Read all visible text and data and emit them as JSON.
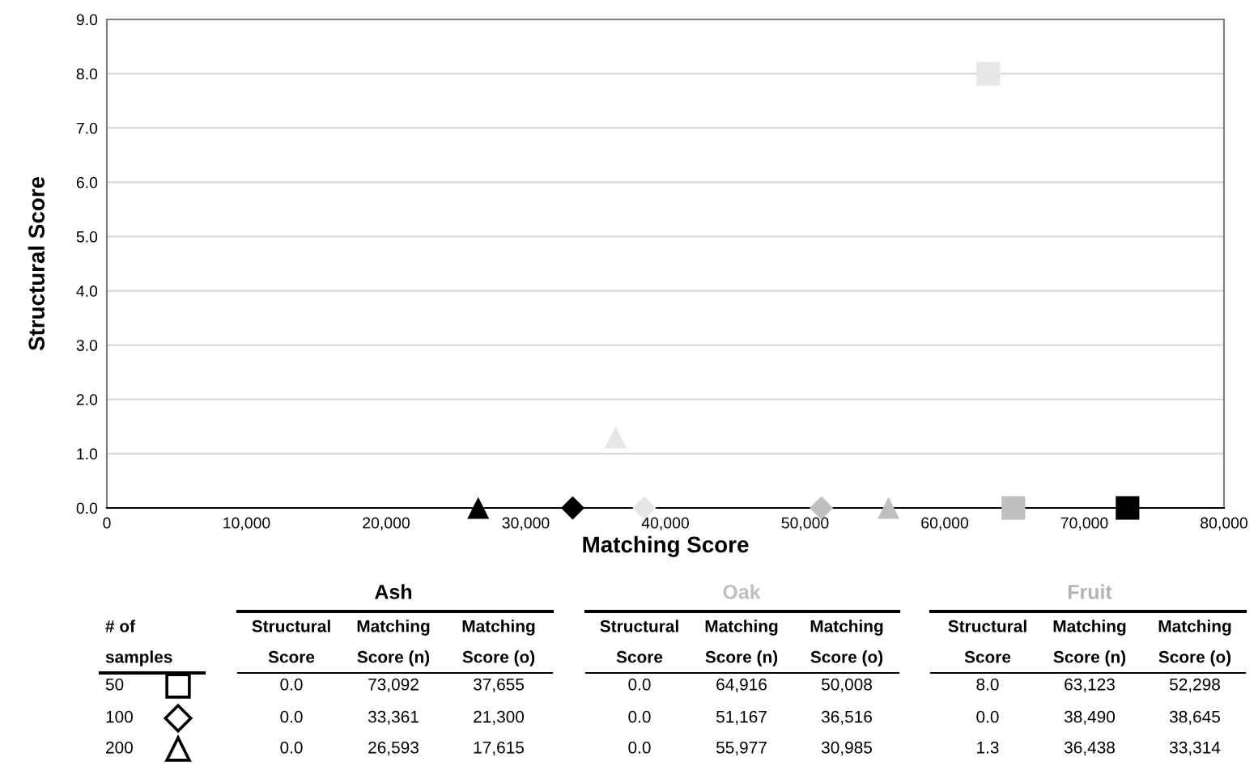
{
  "chart_data": {
    "type": "scatter",
    "xlabel": "Matching Score",
    "ylabel": "Structural Score",
    "xlim": [
      0,
      80000
    ],
    "xticks": [
      0,
      {
        "value": 10000,
        "label": "10,000"
      },
      {
        "value": 20000,
        "label": "20,000"
      },
      {
        "value": 30000,
        "label": "30,000"
      },
      {
        "value": 40000,
        "label": "40,000"
      },
      {
        "value": 50000,
        "label": "50,000"
      },
      {
        "value": 60000,
        "label": "60,000"
      },
      {
        "value": 70000,
        "label": "70,000"
      },
      {
        "value": 80000,
        "label": "80,000"
      }
    ],
    "ylim": [
      0,
      9
    ],
    "yticks": [
      {
        "value": 0,
        "label": "0.0"
      },
      {
        "value": 1,
        "label": "1.0"
      },
      {
        "value": 2,
        "label": "2.0"
      },
      {
        "value": 3,
        "label": "3.0"
      },
      {
        "value": 4,
        "label": "4.0"
      },
      {
        "value": 5,
        "label": "5.0"
      },
      {
        "value": 6,
        "label": "6.0"
      },
      {
        "value": 7,
        "label": "7.0"
      },
      {
        "value": 8,
        "label": "8.0"
      },
      {
        "value": 9,
        "label": "9.0"
      }
    ],
    "grid": "y",
    "legend": false,
    "series": [
      {
        "color": "#000000",
        "marker": "square",
        "x": [
          73092
        ],
        "values": [
          0.0
        ]
      },
      {
        "color": "#000000",
        "marker": "diamond",
        "x": [
          33361
        ],
        "values": [
          0.0
        ]
      },
      {
        "color": "#000000",
        "marker": "triangle",
        "x": [
          26593
        ],
        "values": [
          0.0
        ]
      },
      {
        "color": "#bfbfbf",
        "marker": "square",
        "x": [
          64916
        ],
        "values": [
          0.0
        ]
      },
      {
        "color": "#bfbfbf",
        "marker": "diamond",
        "x": [
          51167
        ],
        "values": [
          0.0
        ]
      },
      {
        "color": "#bfbfbf",
        "marker": "triangle",
        "x": [
          55977
        ],
        "values": [
          0.0
        ]
      },
      {
        "color": "#e6e6e6",
        "marker": "square",
        "x": [
          63123
        ],
        "values": [
          8.0
        ]
      },
      {
        "color": "#e6e6e6",
        "marker": "diamond",
        "x": [
          38490
        ],
        "values": [
          0.0
        ]
      },
      {
        "color": "#e6e6e6",
        "marker": "triangle",
        "x": [
          36438
        ],
        "values": [
          1.3
        ]
      }
    ],
    "annotations": [
      "Ash",
      "Oak",
      "Fruit",
      "# of",
      "samples",
      "Structural",
      "Matching",
      "Matching",
      "Score",
      "Score (n)",
      "Score (o)",
      "Structural",
      "Matching",
      "Matching",
      "Score",
      "Score (n)",
      "Score (o)",
      "Structural",
      "Matching",
      "Matching",
      "Score",
      "Score (n)",
      "Score (o)",
      "50",
      "100",
      "200",
      "0.0",
      "73,092",
      "37,655",
      "0.0",
      "64,916",
      "50,008",
      "8.0",
      "63,123",
      "52,298",
      "0.0",
      "33,361",
      "21,300",
      "0.0",
      "51,167",
      "36,516",
      "0.0",
      "38,490",
      "38,645",
      "0.0",
      "26,593",
      "17,615",
      "0.0",
      "55,977",
      "30,985",
      "1.3",
      "36,438",
      "33,314"
    ]
  }
}
